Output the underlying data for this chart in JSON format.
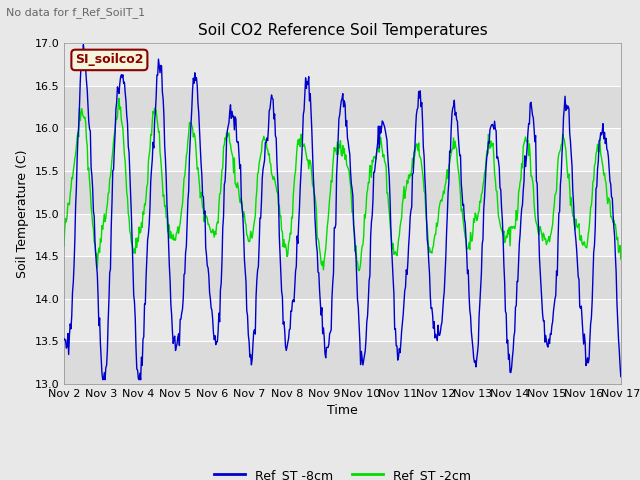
{
  "title": "Soil CO2 Reference Soil Temperatures",
  "subtitle": "No data for f_Ref_SoilT_1",
  "ylabel": "Soil Temperature (C)",
  "xlabel": "Time",
  "ylim": [
    13.0,
    17.0
  ],
  "yticks": [
    13.0,
    13.5,
    14.0,
    14.5,
    15.0,
    15.5,
    16.0,
    16.5,
    17.0
  ],
  "xtick_labels": [
    "Nov 2",
    "Nov 3",
    "Nov 4",
    "Nov 5",
    "Nov 6",
    "Nov 7",
    "Nov 8",
    "Nov 9",
    "Nov 10",
    "Nov 11",
    "Nov 12",
    "Nov 13",
    "Nov 14",
    "Nov 15",
    "Nov 16",
    "Nov 17"
  ],
  "line_blue_color": "#0000cc",
  "line_green_color": "#00dd00",
  "legend_label_blue": "Ref_ST -8cm",
  "legend_label_green": "Ref_ST -2cm",
  "watermark_text": "SI_soilco2",
  "watermark_color": "#8B0000",
  "watermark_bg": "#f5f5dc",
  "fig_facecolor": "#e8e8e8",
  "plot_bg_color": "#e8e8e8",
  "grid_color": "#ffffff",
  "title_fontsize": 11,
  "label_fontsize": 9,
  "tick_fontsize": 8,
  "subtitle_fontsize": 8
}
